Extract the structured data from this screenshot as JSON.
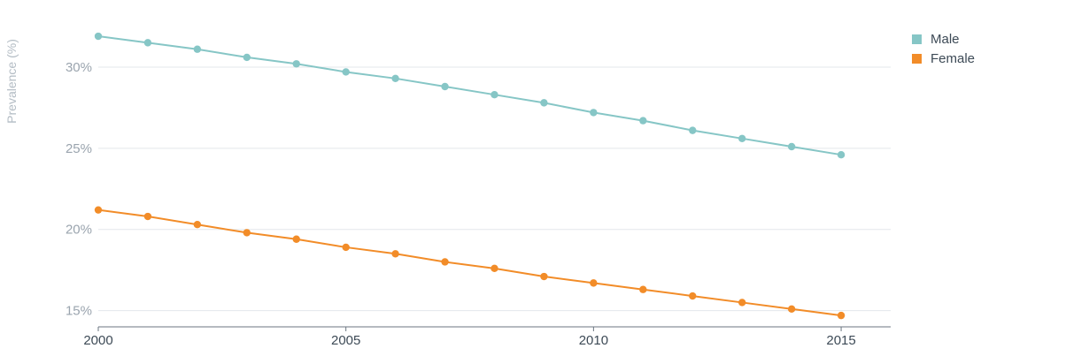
{
  "chart_data": {
    "type": "line",
    "title": "",
    "xlabel": "",
    "ylabel": "Prevalence (%)",
    "x": [
      2000,
      2001,
      2002,
      2003,
      2004,
      2005,
      2006,
      2007,
      2008,
      2009,
      2010,
      2011,
      2012,
      2013,
      2014,
      2015
    ],
    "x_ticks": [
      "2000",
      "2005",
      "2010",
      "2015"
    ],
    "y_ticks": [
      "15%",
      "20%",
      "25%",
      "30%"
    ],
    "xlim": [
      2000,
      2016
    ],
    "ylim": [
      14,
      32.5
    ],
    "grid": "horizontal",
    "legend_position": "top-right",
    "series": [
      {
        "name": "Male",
        "color": "#86c6c6",
        "values": [
          31.9,
          31.5,
          31.1,
          30.6,
          30.2,
          29.7,
          29.3,
          28.8,
          28.3,
          27.8,
          27.2,
          26.7,
          26.1,
          25.6,
          25.1,
          24.6
        ]
      },
      {
        "name": "Female",
        "color": "#f28c28",
        "values": [
          21.2,
          20.8,
          20.3,
          19.8,
          19.4,
          18.9,
          18.5,
          18.0,
          17.6,
          17.1,
          16.7,
          16.3,
          15.9,
          15.5,
          15.1,
          14.7
        ]
      }
    ]
  }
}
